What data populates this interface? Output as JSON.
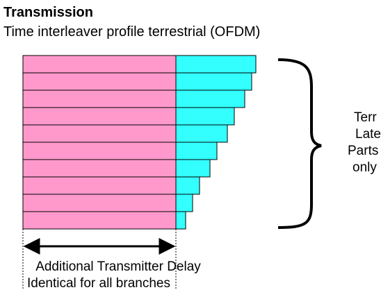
{
  "header": {
    "title": "Transmission",
    "subtitle": "Time interleaver profile terrestrial (OFDM)"
  },
  "side_label": [
    "Terr",
    "Late",
    "Parts",
    "only"
  ],
  "bottom_label": [
    "Additional Transmitter Delay",
    "Identical for all branches"
  ]
}
